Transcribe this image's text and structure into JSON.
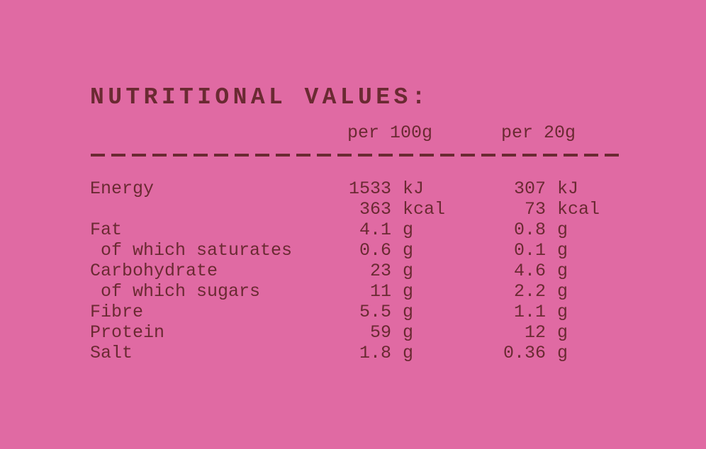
{
  "title": "NUTRITIONAL VALUES:",
  "columns": [
    "per 100g",
    "per 20g"
  ],
  "rows": [
    {
      "label": "Energy",
      "per_100g": "1533",
      "per_100g_unit": "kJ",
      "per_20g": "307",
      "per_20g_unit": "kJ"
    },
    {
      "per_100g": "363",
      "per_100g_unit": "kcal",
      "per_20g": "73",
      "per_20g_unit": "kcal"
    },
    {
      "label": "Fat",
      "per_100g": "4.1",
      "per_100g_unit": "g",
      "per_20g": "0.8",
      "per_20g_unit": "g"
    },
    {
      "label": " of which saturates",
      "per_100g": "0.6",
      "per_100g_unit": "g",
      "per_20g": "0.1",
      "per_20g_unit": "g"
    },
    {
      "label": "Carbohydrate",
      "per_100g": "23",
      "per_100g_unit": "g",
      "per_20g": "4.6",
      "per_20g_unit": "g"
    },
    {
      "label": " of which sugars",
      "per_100g": "11",
      "per_100g_unit": "g",
      "per_20g": "2.2",
      "per_20g_unit": "g"
    },
    {
      "label": "Fibre",
      "per_100g": "5.5",
      "per_100g_unit": "g",
      "per_20g": "1.1",
      "per_20g_unit": "g"
    },
    {
      "label": "Protein",
      "per_100g": "59",
      "per_100g_unit": "g",
      "per_20g": "12",
      "per_20g_unit": "g"
    },
    {
      "label": "Salt",
      "per_100g": "1.8",
      "per_100g_unit": "g",
      "per_20g": "0.36",
      "per_20g_unit": "g"
    }
  ]
}
